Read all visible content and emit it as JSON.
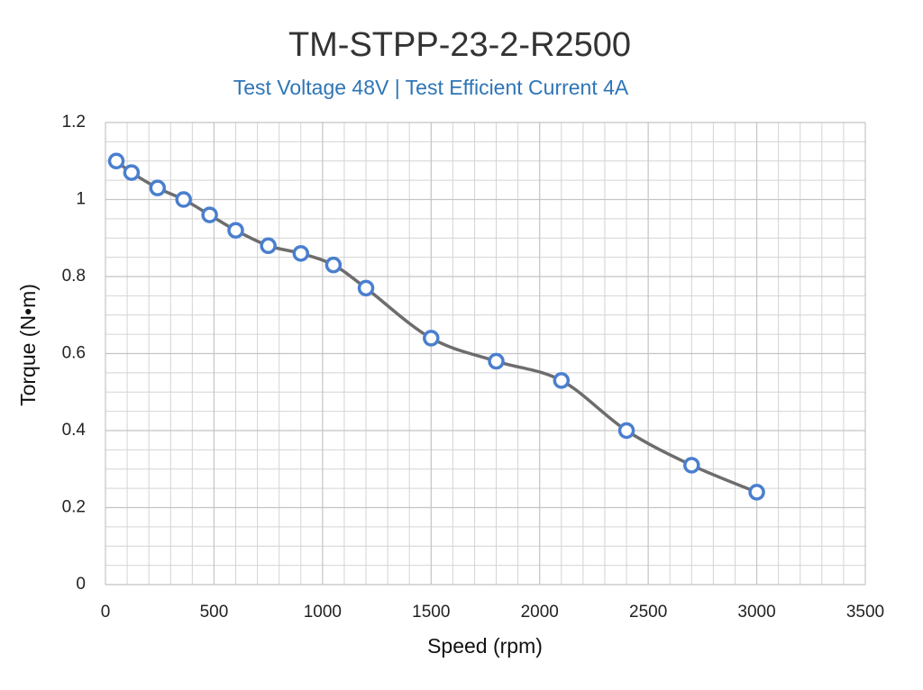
{
  "chart_data": {
    "type": "line",
    "title": "TM-STPP-23-2-R2500",
    "subtitle": "Test Voltage 48V | Test Efficient Current 4A",
    "x_label": "Speed (rpm)",
    "y_label": "Torque (N•m)",
    "x": [
      50,
      120,
      240,
      360,
      480,
      600,
      750,
      900,
      1050,
      1200,
      1500,
      1800,
      2100,
      2400,
      2700,
      3000
    ],
    "series": [
      {
        "name": "Torque",
        "color": "#4a7fcf",
        "line_color": "#6d6d6d",
        "values": [
          1.1,
          1.07,
          1.03,
          1.0,
          0.96,
          0.92,
          0.88,
          0.86,
          0.83,
          0.77,
          0.64,
          0.58,
          0.53,
          0.4,
          0.31,
          0.24
        ]
      }
    ],
    "xlim": [
      0,
      3500
    ],
    "xticks": [
      0,
      500,
      1000,
      1500,
      2000,
      2500,
      3000,
      3500
    ],
    "ylim": [
      0,
      1.2
    ],
    "yticks": [
      0,
      0.2,
      0.4,
      0.6,
      0.8,
      1,
      1.2
    ],
    "grid": true,
    "smooth": true
  }
}
